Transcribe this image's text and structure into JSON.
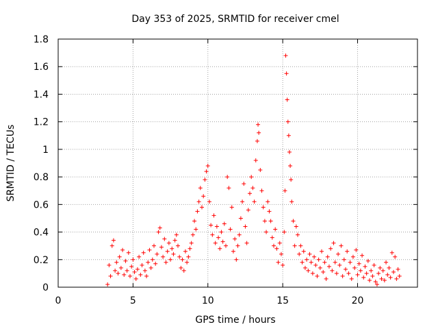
{
  "chart_data": {
    "type": "scatter",
    "title": "Day 353 of 2025, SRMTID for receiver cmel",
    "xlabel": "GPS time / hours",
    "ylabel": "SRMTID / TECUs",
    "xlim": [
      0,
      24
    ],
    "ylim": [
      0,
      1.8
    ],
    "xticks": [
      "0",
      "5",
      "10",
      "15",
      "20"
    ],
    "yticks": [
      "0",
      "0.2",
      "0.4",
      "0.6",
      "0.8",
      "1",
      "1.2",
      "1.4",
      "1.6",
      "1.8"
    ],
    "grid": true,
    "series": [
      {
        "name": "SRMTID",
        "color": "#ff0000",
        "marker": "plus",
        "points": [
          [
            3.3,
            0.02
          ],
          [
            3.4,
            0.16
          ],
          [
            3.5,
            0.08
          ],
          [
            3.6,
            0.3
          ],
          [
            3.7,
            0.34
          ],
          [
            3.8,
            0.12
          ],
          [
            3.9,
            0.18
          ],
          [
            4.0,
            0.1
          ],
          [
            4.1,
            0.22
          ],
          [
            4.2,
            0.14
          ],
          [
            4.3,
            0.27
          ],
          [
            4.4,
            0.09
          ],
          [
            4.5,
            0.19
          ],
          [
            4.6,
            0.12
          ],
          [
            4.7,
            0.25
          ],
          [
            4.8,
            0.08
          ],
          [
            4.9,
            0.15
          ],
          [
            5.0,
            0.2
          ],
          [
            5.1,
            0.11
          ],
          [
            5.2,
            0.06
          ],
          [
            5.3,
            0.13
          ],
          [
            5.4,
            0.22
          ],
          [
            5.5,
            0.09
          ],
          [
            5.6,
            0.16
          ],
          [
            5.7,
            0.25
          ],
          [
            5.8,
            0.12
          ],
          [
            5.9,
            0.08
          ],
          [
            6.0,
            0.18
          ],
          [
            6.1,
            0.27
          ],
          [
            6.2,
            0.14
          ],
          [
            6.3,
            0.2
          ],
          [
            6.4,
            0.3
          ],
          [
            6.5,
            0.17
          ],
          [
            6.6,
            0.24
          ],
          [
            6.7,
            0.4
          ],
          [
            6.8,
            0.43
          ],
          [
            6.9,
            0.29
          ],
          [
            7.0,
            0.22
          ],
          [
            7.1,
            0.35
          ],
          [
            7.2,
            0.18
          ],
          [
            7.3,
            0.26
          ],
          [
            7.4,
            0.32
          ],
          [
            7.5,
            0.2
          ],
          [
            7.6,
            0.28
          ],
          [
            7.7,
            0.24
          ],
          [
            7.8,
            0.34
          ],
          [
            7.9,
            0.38
          ],
          [
            8.0,
            0.3
          ],
          [
            8.1,
            0.22
          ],
          [
            8.2,
            0.14
          ],
          [
            8.3,
            0.2
          ],
          [
            8.4,
            0.12
          ],
          [
            8.5,
            0.26
          ],
          [
            8.6,
            0.18
          ],
          [
            8.7,
            0.22
          ],
          [
            8.8,
            0.28
          ],
          [
            8.9,
            0.32
          ],
          [
            9.0,
            0.38
          ],
          [
            9.1,
            0.48
          ],
          [
            9.2,
            0.42
          ],
          [
            9.3,
            0.55
          ],
          [
            9.4,
            0.62
          ],
          [
            9.5,
            0.72
          ],
          [
            9.6,
            0.58
          ],
          [
            9.7,
            0.66
          ],
          [
            9.8,
            0.78
          ],
          [
            9.9,
            0.84
          ],
          [
            10.0,
            0.88
          ],
          [
            10.1,
            0.62
          ],
          [
            10.2,
            0.45
          ],
          [
            10.3,
            0.38
          ],
          [
            10.4,
            0.52
          ],
          [
            10.5,
            0.32
          ],
          [
            10.6,
            0.44
          ],
          [
            10.7,
            0.36
          ],
          [
            10.8,
            0.28
          ],
          [
            10.9,
            0.4
          ],
          [
            11.0,
            0.33
          ],
          [
            11.1,
            0.46
          ],
          [
            11.2,
            0.3
          ],
          [
            11.3,
            0.8
          ],
          [
            11.4,
            0.72
          ],
          [
            11.5,
            0.42
          ],
          [
            11.6,
            0.58
          ],
          [
            11.7,
            0.26
          ],
          [
            11.8,
            0.35
          ],
          [
            11.9,
            0.2
          ],
          [
            12.0,
            0.3
          ],
          [
            12.1,
            0.38
          ],
          [
            12.2,
            0.5
          ],
          [
            12.3,
            0.62
          ],
          [
            12.4,
            0.75
          ],
          [
            12.5,
            0.44
          ],
          [
            12.6,
            0.32
          ],
          [
            12.7,
            0.56
          ],
          [
            12.8,
            0.68
          ],
          [
            12.9,
            0.8
          ],
          [
            13.0,
            0.72
          ],
          [
            13.1,
            0.62
          ],
          [
            13.2,
            0.92
          ],
          [
            13.3,
            1.06
          ],
          [
            13.35,
            1.18
          ],
          [
            13.4,
            1.12
          ],
          [
            13.5,
            0.85
          ],
          [
            13.6,
            0.7
          ],
          [
            13.7,
            0.58
          ],
          [
            13.8,
            0.48
          ],
          [
            13.9,
            0.4
          ],
          [
            14.0,
            0.62
          ],
          [
            14.1,
            0.55
          ],
          [
            14.2,
            0.48
          ],
          [
            14.3,
            0.36
          ],
          [
            14.4,
            0.3
          ],
          [
            14.5,
            0.42
          ],
          [
            14.6,
            0.28
          ],
          [
            14.7,
            0.18
          ],
          [
            14.8,
            0.32
          ],
          [
            14.9,
            0.24
          ],
          [
            15.0,
            0.16
          ],
          [
            15.1,
            0.4
          ],
          [
            15.15,
            0.7
          ],
          [
            15.2,
            1.68
          ],
          [
            15.25,
            1.55
          ],
          [
            15.3,
            1.36
          ],
          [
            15.35,
            1.2
          ],
          [
            15.4,
            1.1
          ],
          [
            15.45,
            0.98
          ],
          [
            15.5,
            0.88
          ],
          [
            15.55,
            0.78
          ],
          [
            15.6,
            0.62
          ],
          [
            15.7,
            0.48
          ],
          [
            15.8,
            0.3
          ],
          [
            15.9,
            0.44
          ],
          [
            16.0,
            0.38
          ],
          [
            16.1,
            0.24
          ],
          [
            16.2,
            0.3
          ],
          [
            16.3,
            0.18
          ],
          [
            16.4,
            0.26
          ],
          [
            16.5,
            0.14
          ],
          [
            16.6,
            0.2
          ],
          [
            16.7,
            0.12
          ],
          [
            16.8,
            0.24
          ],
          [
            16.9,
            0.18
          ],
          [
            17.0,
            0.1
          ],
          [
            17.1,
            0.22
          ],
          [
            17.2,
            0.16
          ],
          [
            17.3,
            0.08
          ],
          [
            17.4,
            0.2
          ],
          [
            17.5,
            0.14
          ],
          [
            17.6,
            0.26
          ],
          [
            17.7,
            0.11
          ],
          [
            17.8,
            0.18
          ],
          [
            17.9,
            0.06
          ],
          [
            18.0,
            0.22
          ],
          [
            18.1,
            0.15
          ],
          [
            18.2,
            0.28
          ],
          [
            18.3,
            0.12
          ],
          [
            18.4,
            0.32
          ],
          [
            18.5,
            0.18
          ],
          [
            18.6,
            0.1
          ],
          [
            18.7,
            0.24
          ],
          [
            18.8,
            0.16
          ],
          [
            18.9,
            0.3
          ],
          [
            19.0,
            0.08
          ],
          [
            19.1,
            0.2
          ],
          [
            19.2,
            0.13
          ],
          [
            19.3,
            0.26
          ],
          [
            19.4,
            0.1
          ],
          [
            19.5,
            0.18
          ],
          [
            19.6,
            0.06
          ],
          [
            19.7,
            0.22
          ],
          [
            19.8,
            0.14
          ],
          [
            19.9,
            0.27
          ],
          [
            20.0,
            0.09
          ],
          [
            20.1,
            0.17
          ],
          [
            20.2,
            0.12
          ],
          [
            20.3,
            0.23
          ],
          [
            20.4,
            0.07
          ],
          [
            20.5,
            0.15
          ],
          [
            20.6,
            0.1
          ],
          [
            20.7,
            0.19
          ],
          [
            20.8,
            0.05
          ],
          [
            20.9,
            0.12
          ],
          [
            21.0,
            0.08
          ],
          [
            21.1,
            0.16
          ],
          [
            21.2,
            0.04
          ],
          [
            21.3,
            0.02
          ],
          [
            21.4,
            0.1
          ],
          [
            21.5,
            0.14
          ],
          [
            21.6,
            0.06
          ],
          [
            21.7,
            0.12
          ],
          [
            21.8,
            0.05
          ],
          [
            21.9,
            0.18
          ],
          [
            22.0,
            0.09
          ],
          [
            22.1,
            0.14
          ],
          [
            22.2,
            0.07
          ],
          [
            22.3,
            0.25
          ],
          [
            22.4,
            0.11
          ],
          [
            22.5,
            0.22
          ],
          [
            22.6,
            0.06
          ],
          [
            22.7,
            0.13
          ],
          [
            22.8,
            0.08
          ]
        ]
      }
    ]
  }
}
